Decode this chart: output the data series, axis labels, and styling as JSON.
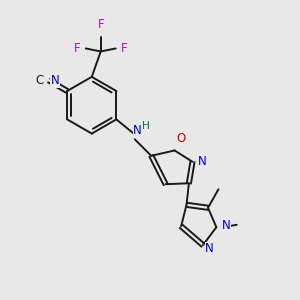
{
  "background_color": "#e8e8e8",
  "bond_color": "#1a1a1a",
  "atom_colors": {
    "N": "#0000cc",
    "O": "#cc0000",
    "F": "#cc00cc",
    "C": "#1a1a1a",
    "H": "#007070"
  },
  "figsize": [
    3.0,
    3.0
  ],
  "dpi": 100,
  "lw": 1.4,
  "fs": 8.5
}
